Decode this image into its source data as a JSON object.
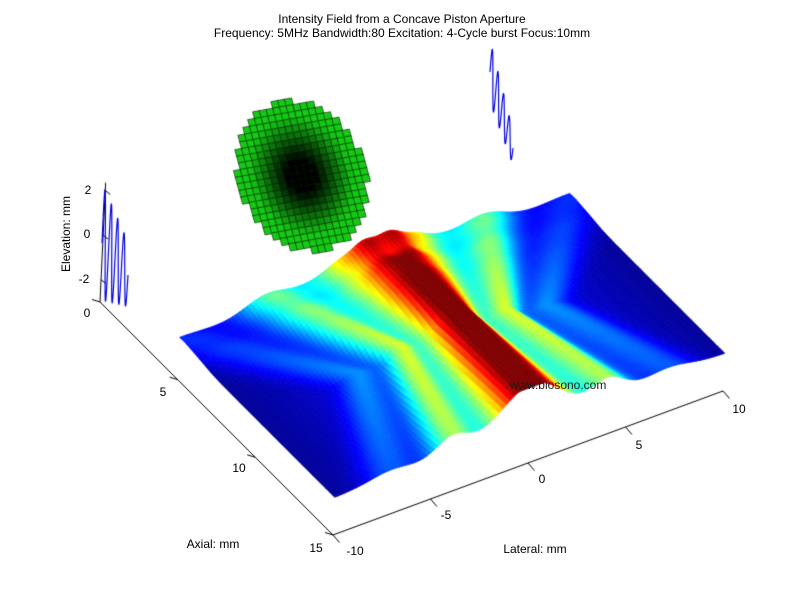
{
  "title": {
    "line1": "Intensity Field from a Concave Piston Aperture",
    "line2": "Frequency: 5MHz  Bandwidth:80 Excitation: 4-Cycle burst Focus:10mm"
  },
  "watermark": "www.biosono.com",
  "chart_data": {
    "type": "surface-3d",
    "title": "Intensity Field from a Concave Piston Aperture",
    "subtitle": "Frequency: 5MHz  Bandwidth:80 Excitation: 4-Cycle burst Focus:10mm",
    "parameters": {
      "frequency": "5MHz",
      "bandwidth": "80",
      "excitation": "4-Cycle burst",
      "focus": "10mm"
    },
    "colormap": "jet",
    "grid": "off",
    "background": "#ffffff",
    "axes": {
      "axial": {
        "label": "Axial: mm",
        "range": [
          0,
          15
        ],
        "ticks": [
          "0",
          "5",
          "10",
          "15"
        ]
      },
      "lateral": {
        "label": "Lateral: mm",
        "range": [
          -10,
          10
        ],
        "ticks": [
          "-10",
          "-5",
          "0",
          "5",
          "10"
        ]
      },
      "elevation": {
        "label": "Elevation: mm",
        "range": [
          -3,
          2
        ],
        "ticks": [
          "2",
          "0",
          "-2"
        ]
      }
    },
    "surface_model": {
      "description": "Acoustic intensity field of focused beam; raised red ridge along axial direction at lateral = 0",
      "axial_range_mm": [
        5,
        15
      ],
      "lateral_range_mm": [
        -10,
        10
      ],
      "focus_mm": 10,
      "base_elevation_mm": -1.35,
      "peak_lift_mm": 1.75,
      "sigma_at_focus_mm": 1.35,
      "sigma_slope_prefocus": 0.29,
      "sigma_slope_postfocus": 0.13,
      "sidelobe_level": 0.42,
      "outer_sidelobe_level": 0.15,
      "pedestal_level": 0.16,
      "intensity_range": [
        0,
        1
      ]
    },
    "aperture_mesh": {
      "description": "Concave piston aperture shown as tiled mesh disc, dark at center",
      "edge_color_max": "#1ec81e",
      "center_color": "#000000",
      "tile_stroke": "#001900"
    },
    "excitation_waveforms": {
      "description": "4-cycle burst excitation signals drawn in blue at both elevation axes",
      "color": "#0000e0",
      "cycles": 4,
      "count": 2
    }
  }
}
